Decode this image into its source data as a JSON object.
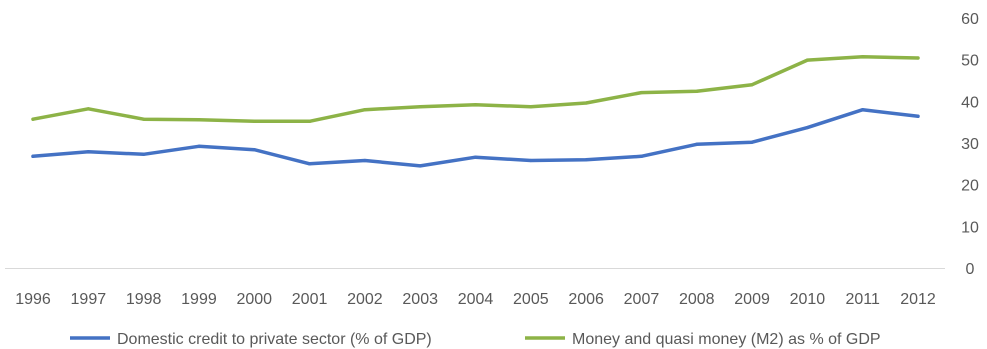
{
  "chart_data": {
    "type": "line",
    "title": "",
    "xlabel": "",
    "ylabel": "",
    "categories": [
      "1996",
      "1997",
      "1998",
      "1999",
      "2000",
      "2001",
      "2002",
      "2003",
      "2004",
      "2005",
      "2006",
      "2007",
      "2008",
      "2009",
      "2010",
      "2011",
      "2012"
    ],
    "ylim": [
      0,
      60
    ],
    "yticks": [
      "0",
      "10",
      "20",
      "30",
      "40",
      "50",
      "60"
    ],
    "grid": false,
    "y_axis_side": "right",
    "legend_position": "bottom",
    "series": [
      {
        "name": "Domestic credit to private sector (% of GDP)",
        "color": "#4472C4",
        "values": [
          26.8,
          27.9,
          27.3,
          29.2,
          28.4,
          25.0,
          25.8,
          24.5,
          26.6,
          25.8,
          26.0,
          26.8,
          29.7,
          30.2,
          33.7,
          38.0,
          36.4
        ]
      },
      {
        "name": "Money and quasi money (M2) as % of GDP",
        "color": "#8DB347",
        "values": [
          35.7,
          38.2,
          35.7,
          35.6,
          35.2,
          35.2,
          38.0,
          38.7,
          39.2,
          38.7,
          39.6,
          42.1,
          42.4,
          44.0,
          49.9,
          50.7,
          50.4
        ]
      }
    ]
  }
}
